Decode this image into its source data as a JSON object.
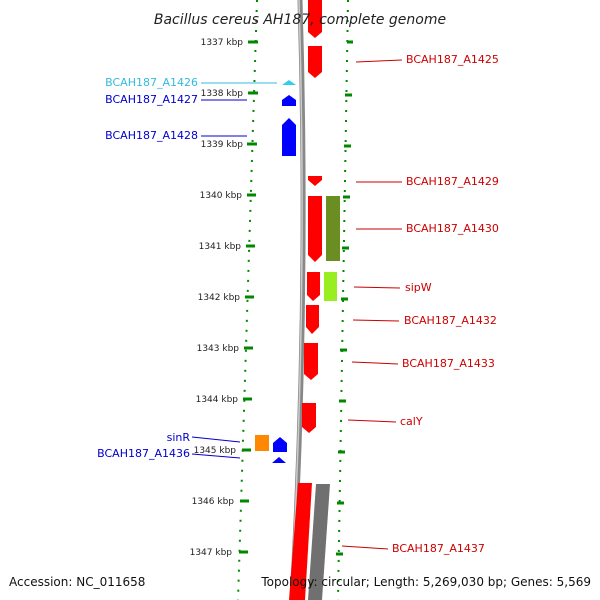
{
  "title": "Bacillus cereus AH187, complete genome",
  "footer": {
    "accession": "Accession: NC_011658",
    "topology": "Topology: circular; Length: 5,269,030 bp; Genes: 5,569"
  },
  "kbp_ticks": [
    "1337 kbp",
    "1338 kbp",
    "1339 kbp",
    "1340 kbp",
    "1341 kbp",
    "1342 kbp",
    "1343 kbp",
    "1344 kbp",
    "1345 kbp",
    "1346 kbp",
    "1347 kbp"
  ],
  "genes": [
    {
      "name": "BCAH187_A1425",
      "side": "right",
      "color": "#cc0000"
    },
    {
      "name": "BCAH187_A1426",
      "side": "left",
      "color": "#33bbdd"
    },
    {
      "name": "BCAH187_A1427",
      "side": "left",
      "color": "#0000cc"
    },
    {
      "name": "BCAH187_A1428",
      "side": "left",
      "color": "#0000cc"
    },
    {
      "name": "BCAH187_A1429",
      "side": "right",
      "color": "#cc0000"
    },
    {
      "name": "BCAH187_A1430",
      "side": "right",
      "color": "#cc0000"
    },
    {
      "name": "sipW",
      "side": "right",
      "color": "#cc0000"
    },
    {
      "name": "BCAH187_A1432",
      "side": "right",
      "color": "#cc0000"
    },
    {
      "name": "BCAH187_A1433",
      "side": "right",
      "color": "#cc0000"
    },
    {
      "name": "calY",
      "side": "right",
      "color": "#cc0000"
    },
    {
      "name": "sinR",
      "side": "left",
      "color": "#0000cc"
    },
    {
      "name": "BCAH187_A1436",
      "side": "left",
      "color": "#0000cc"
    },
    {
      "name": "BCAH187_A1437",
      "side": "right",
      "color": "#cc0000"
    }
  ],
  "colors": {
    "forward_gene": "#ff0000",
    "reverse_gene": "#0000ff",
    "cyan_gene": "#33ccee",
    "olive_feature": "#6b8e23",
    "lime_feature": "#99ee22",
    "orange_feature": "#ff8800",
    "backbone": "#888888",
    "tick_dots": "#008800"
  }
}
